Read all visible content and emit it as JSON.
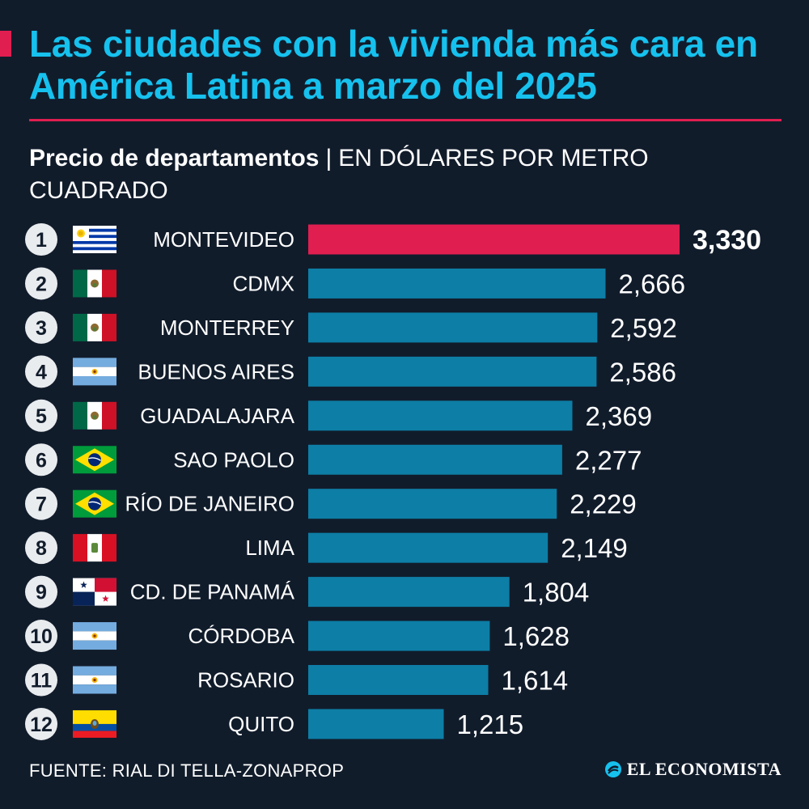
{
  "header": {
    "title": "Las ciudades con la vivienda más cara en América Latina a marzo del 2025",
    "subtitle_main": "Precio de departamentos",
    "subtitle_separator": "|",
    "subtitle_unit": "EN DÓLARES POR METRO CUADRADO"
  },
  "colors": {
    "accent": "#e01e50",
    "bar": "#0d7ea6",
    "title": "#16c1ee",
    "background": "#111c2b"
  },
  "chart_data": {
    "type": "bar",
    "orientation": "horizontal",
    "ranks": [
      "1",
      "2",
      "3",
      "4",
      "5",
      "6",
      "7",
      "8",
      "9",
      "10",
      "11",
      "12"
    ],
    "categories": [
      "MONTEVIDEO",
      "CDMX",
      "MONTERREY",
      "BUENOS AIRES",
      "GUADALAJARA",
      "SAO PAOLO",
      "RÍO DE JANEIRO",
      "LIMA",
      "CD. DE PANAMÁ",
      "CÓRDOBA",
      "ROSARIO",
      "QUITO"
    ],
    "flags": [
      "uruguay-flag",
      "mexico-flag",
      "mexico-flag",
      "argentina-flag",
      "mexico-flag",
      "brazil-flag",
      "brazil-flag",
      "peru-flag",
      "panama-flag",
      "argentina-flag",
      "argentina-flag",
      "ecuador-flag"
    ],
    "values": [
      3330,
      2666,
      2592,
      2586,
      2369,
      2277,
      2229,
      2149,
      1804,
      1628,
      1614,
      1215
    ],
    "value_labels": [
      "3,330",
      "2,666",
      "2,592",
      "2,586",
      "2,369",
      "2,277",
      "2,229",
      "2,149",
      "1,804",
      "1,628",
      "1,614",
      "1,215"
    ],
    "highlight_index": 0,
    "grid": false,
    "legend": "none"
  },
  "footer": {
    "source": "FUENTE: RIAL DI TELLA-ZONAPROP",
    "brand": "EL ECONOMISTA",
    "brand_icon": "el-economista-logo-icon"
  }
}
